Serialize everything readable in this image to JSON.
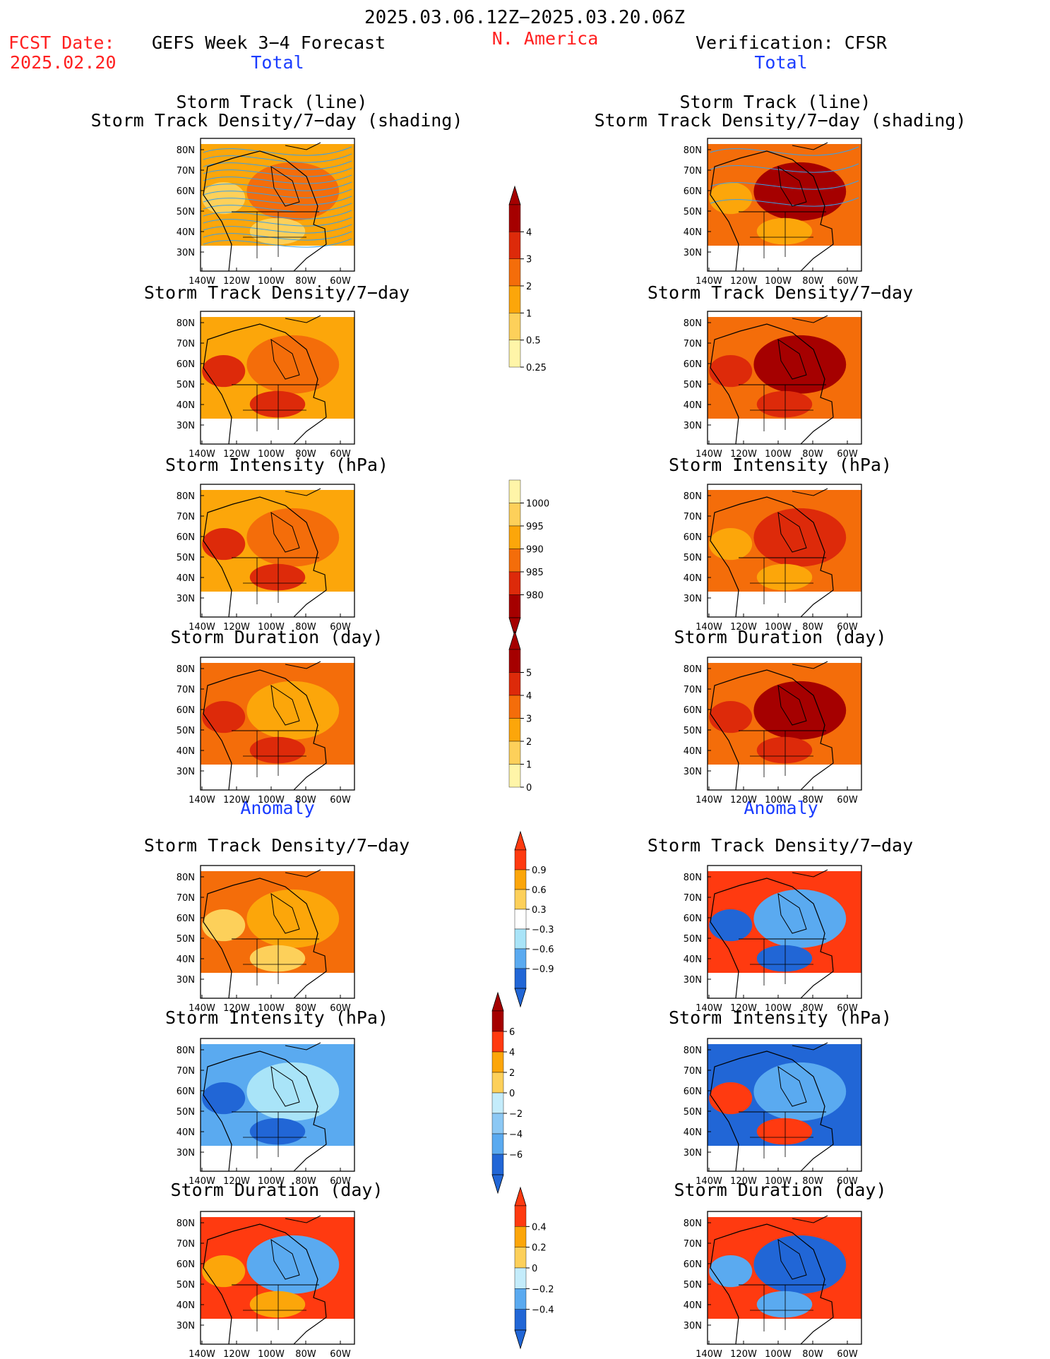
{
  "header": {
    "date_range": "2025.03.06.12Z−2025.03.20.06Z",
    "fcst_label": "FCST Date:",
    "fcst_date": "2025.02.20",
    "forecast_title": "GEFS Week 3−4 Forecast",
    "region": "N. America",
    "verification_title": "Verification: CFSR"
  },
  "colors": {
    "accent_red": "#ff2020",
    "accent_blue": "#1a3cff"
  },
  "sections": {
    "total_label": "Total",
    "anomaly_label": "Anomaly"
  },
  "panel_titles": {
    "storm_track_line": "Storm Track (line)",
    "storm_track_shading": "Storm Track Density/7−day (shading)",
    "track_density": "Storm Track Density/7−day",
    "intensity": "Storm Intensity (hPa)",
    "duration": "Storm Duration (day)"
  },
  "axes": {
    "lat_labels": [
      "80N",
      "70N",
      "60N",
      "50N",
      "40N",
      "30N"
    ],
    "lon_labels": [
      "140W",
      "120W",
      "100W",
      "80W",
      "60W"
    ]
  },
  "colorbars": {
    "density": {
      "labels": [
        "4",
        "3",
        "2",
        "1",
        "0.5",
        "0.25"
      ],
      "colors": [
        "#a50000",
        "#dd2a0a",
        "#f46d0a",
        "#fca60a",
        "#fdd05a",
        "#fff5a8"
      ]
    },
    "intensity": {
      "labels": [
        "1000",
        "995",
        "990",
        "985",
        "980"
      ],
      "colors": [
        "#fff5a8",
        "#fdd05a",
        "#fca60a",
        "#f46d0a",
        "#dd2a0a",
        "#a50000"
      ]
    },
    "duration": {
      "labels": [
        "5",
        "4",
        "3",
        "2",
        "1",
        "0"
      ],
      "colors": [
        "#a50000",
        "#dd2a0a",
        "#f46d0a",
        "#fca60a",
        "#fdd05a",
        "#fff5a8"
      ]
    },
    "density_anom": {
      "labels": [
        "0.9",
        "0.6",
        "0.3",
        "−0.3",
        "−0.6",
        "−0.9"
      ],
      "colors": [
        "#ff3a10",
        "#fca60a",
        "#fdd05a",
        "#ffffff",
        "#a9e4f8",
        "#5aaaf0",
        "#2166d6"
      ]
    },
    "intensity_anom": {
      "labels": [
        "6",
        "4",
        "2",
        "0",
        "−2",
        "−4",
        "−6"
      ],
      "colors": [
        "#a50000",
        "#ff3a10",
        "#fca60a",
        "#fdd05a",
        "#c4ecfb",
        "#8cc8f4",
        "#5aaaf0",
        "#2166d6"
      ]
    },
    "duration_anom": {
      "labels": [
        "0.4",
        "0.2",
        "0",
        "−0.2",
        "−0.4"
      ],
      "colors": [
        "#ff3a10",
        "#fca60a",
        "#fdd05a",
        "#c4ecfb",
        "#5aaaf0",
        "#2166d6"
      ]
    }
  }
}
